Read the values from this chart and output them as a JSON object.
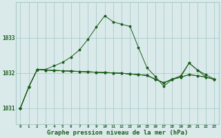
{
  "background_color": "#daeaea",
  "grid_color": "#aacaca",
  "line_color": "#1a5c1a",
  "xlabel": "Graphe pression niveau de la mer (hPa)",
  "xlabel_fontsize": 6.5,
  "ylabel_ticks": [
    1031,
    1032,
    1033
  ],
  "xlim": [
    -0.5,
    23.5
  ],
  "ylim": [
    1030.55,
    1034.0
  ],
  "hours": [
    0,
    1,
    2,
    3,
    4,
    5,
    6,
    7,
    8,
    9,
    10,
    11,
    12,
    13,
    14,
    15,
    16,
    17,
    18,
    19,
    20,
    21,
    22,
    23
  ],
  "series_peak": [
    1031.0,
    1031.6,
    1032.1,
    1032.1,
    1032.2,
    1032.3,
    1032.45,
    1032.65,
    1032.95,
    1033.3,
    1033.62,
    1033.45,
    1033.38,
    1033.32,
    1032.72,
    1032.15,
    1031.9,
    1031.62,
    1031.82,
    1031.92,
    1032.28,
    1032.08,
    1031.95,
    1031.82
  ],
  "series_flat1": [
    1031.0,
    1031.6,
    1032.1,
    1032.08,
    1032.07,
    1032.06,
    1032.05,
    1032.04,
    1032.03,
    1032.02,
    1032.01,
    1032.0,
    1031.99,
    1031.97,
    1031.95,
    1031.93,
    1031.82,
    1031.72,
    1031.82,
    1031.88,
    1031.95,
    1031.92,
    1031.88,
    1031.82
  ],
  "series_flat2": [
    1031.0,
    1031.6,
    1032.1,
    1032.08,
    1032.07,
    1032.06,
    1032.05,
    1032.04,
    1032.03,
    1032.02,
    1032.01,
    1032.0,
    1031.99,
    1031.97,
    1031.95,
    1031.93,
    1031.82,
    1031.72,
    1031.82,
    1031.88,
    1032.28,
    1032.08,
    1031.88,
    1031.82
  ],
  "series_flat3": [
    1031.0,
    1031.6,
    1032.1,
    1032.08,
    1032.07,
    1032.06,
    1032.05,
    1032.04,
    1032.03,
    1032.02,
    1032.01,
    1032.0,
    1031.99,
    1031.97,
    1031.95,
    1031.93,
    1031.82,
    1031.72,
    1031.82,
    1031.88,
    1031.95,
    1031.92,
    1031.88,
    1031.82
  ],
  "xtick_labels": [
    "0",
    "1",
    "2",
    "3",
    "4",
    "5",
    "6",
    "7",
    "8",
    "9",
    "10",
    "11",
    "12",
    "13",
    "14",
    "15",
    "16",
    "17",
    "18",
    "19",
    "20",
    "21",
    "22",
    "23"
  ]
}
